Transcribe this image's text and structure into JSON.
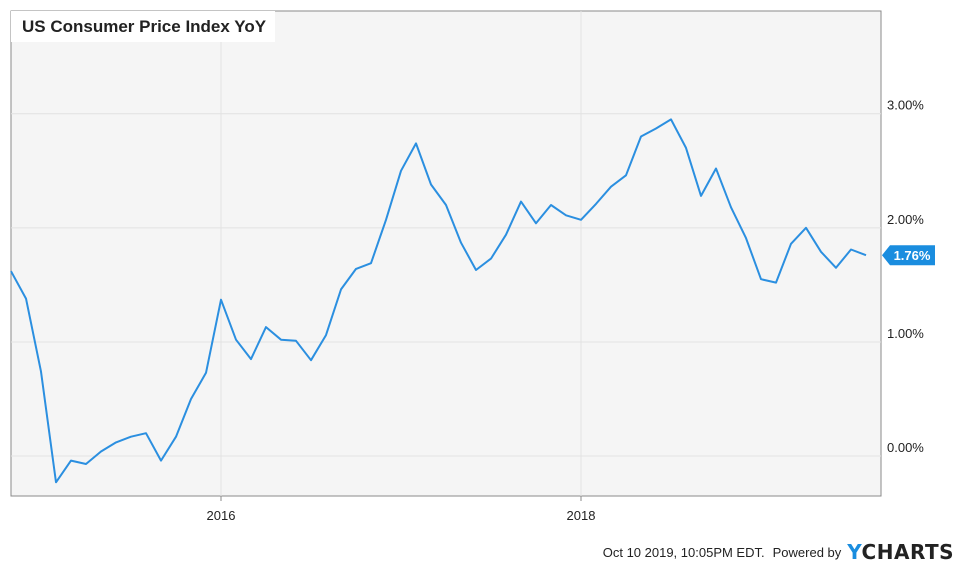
{
  "chart_data": {
    "type": "line",
    "title": "US Consumer Price Index YoY",
    "xlabel": "",
    "ylabel": "",
    "x_tick_labels": [
      "2016",
      "2018"
    ],
    "y_tick_labels": [
      "0.00%",
      "1.00%",
      "2.00%",
      "3.00%"
    ],
    "ylim": [
      -0.35,
      3.9
    ],
    "xlim": [
      "2014-11",
      "2019-09"
    ],
    "grid": true,
    "last_value_label": "1.76%",
    "series": [
      {
        "color": "#2b8fe0",
        "x": [
          "2014-11",
          "2014-12",
          "2015-01",
          "2015-02",
          "2015-03",
          "2015-04",
          "2015-05",
          "2015-06",
          "2015-07",
          "2015-08",
          "2015-09",
          "2015-10",
          "2015-11",
          "2015-12",
          "2016-01",
          "2016-02",
          "2016-03",
          "2016-04",
          "2016-05",
          "2016-06",
          "2016-07",
          "2016-08",
          "2016-09",
          "2016-10",
          "2016-11",
          "2016-12",
          "2017-01",
          "2017-02",
          "2017-03",
          "2017-04",
          "2017-05",
          "2017-06",
          "2017-07",
          "2017-08",
          "2017-09",
          "2017-10",
          "2017-11",
          "2017-12",
          "2018-01",
          "2018-02",
          "2018-03",
          "2018-04",
          "2018-05",
          "2018-06",
          "2018-07",
          "2018-08",
          "2018-09",
          "2018-10",
          "2018-11",
          "2018-12",
          "2019-01",
          "2019-02",
          "2019-03",
          "2019-04",
          "2019-05",
          "2019-06",
          "2019-07",
          "2019-08"
        ],
        "values": [
          1.62,
          1.38,
          0.74,
          -0.23,
          -0.04,
          -0.07,
          0.04,
          0.12,
          0.17,
          0.2,
          -0.04,
          0.17,
          0.5,
          0.73,
          1.37,
          1.02,
          0.85,
          1.13,
          1.02,
          1.01,
          0.84,
          1.06,
          1.46,
          1.64,
          1.69,
          2.07,
          2.5,
          2.74,
          2.38,
          2.2,
          1.87,
          1.63,
          1.73,
          1.94,
          2.23,
          2.04,
          2.2,
          2.11,
          2.07,
          2.21,
          2.36,
          2.46,
          2.8,
          2.87,
          2.95,
          2.7,
          2.28,
          2.52,
          2.18,
          1.91,
          1.55,
          1.52,
          1.86,
          2.0,
          1.79,
          1.65,
          1.81,
          1.76
        ]
      }
    ]
  },
  "footer": {
    "timestamp": "Oct 10 2019, 10:05PM EDT.",
    "powered_by": "Powered by",
    "brand_y": "Y",
    "brand_rest": "CHARTS"
  },
  "colors": {
    "plot_bg": "#f5f5f5",
    "grid": "#e2e2e2",
    "line": "#2b8fe0",
    "last_label_bg": "#1a8ddf"
  }
}
